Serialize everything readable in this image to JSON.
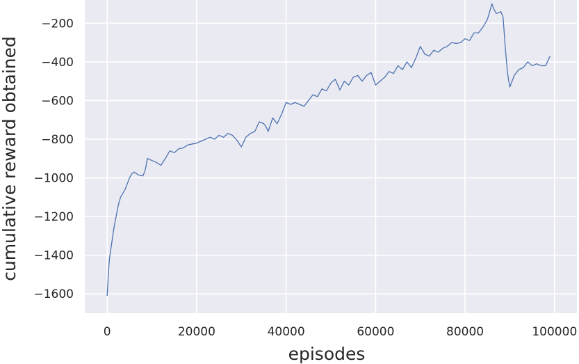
{
  "chart_data": {
    "type": "line",
    "title": "",
    "xlabel": "episodes",
    "ylabel": "cumulative reward obtained",
    "xlim": [
      -5000,
      105000
    ],
    "ylim": [
      -1700,
      -80
    ],
    "grid": true,
    "colors": {
      "background": "#eaeaf2",
      "grid": "#ffffff",
      "line": "#4c72b0"
    },
    "xticks": [
      {
        "value": 0,
        "label": "0"
      },
      {
        "value": 20000,
        "label": "20000"
      },
      {
        "value": 40000,
        "label": "40000"
      },
      {
        "value": 60000,
        "label": "60000"
      },
      {
        "value": 80000,
        "label": "80000"
      },
      {
        "value": 100000,
        "label": "100000"
      }
    ],
    "yticks": [
      {
        "value": -200,
        "label": "−200"
      },
      {
        "value": -400,
        "label": "−400"
      },
      {
        "value": -600,
        "label": "−600"
      },
      {
        "value": -800,
        "label": "−800"
      },
      {
        "value": -1000,
        "label": "−1000"
      },
      {
        "value": -1200,
        "label": "−1200"
      },
      {
        "value": -1400,
        "label": "−1400"
      },
      {
        "value": -1600,
        "label": "−1600"
      }
    ],
    "series": [
      {
        "x": [
          0,
          250,
          500,
          1000,
          1500,
          2000,
          2500,
          3000,
          3500,
          4000,
          5000,
          5500,
          6000,
          7000,
          8000,
          8500,
          9000,
          10000,
          11000,
          12000,
          13000,
          13500,
          14000,
          15000,
          16000,
          17000,
          18000,
          19000,
          20000,
          21000,
          22000,
          23000,
          24000,
          25000,
          26000,
          27000,
          28000,
          29000,
          30000,
          31000,
          32000,
          33000,
          34000,
          35000,
          35500,
          36000,
          37000,
          38000,
          39000,
          40000,
          41000,
          42000,
          43000,
          44000,
          45000,
          46000,
          47000,
          48000,
          49000,
          50000,
          51000,
          52000,
          53000,
          54000,
          55000,
          56000,
          57000,
          58000,
          59000,
          60000,
          61000,
          62000,
          63000,
          64000,
          65000,
          66000,
          67000,
          68000,
          69000,
          70000,
          71000,
          72000,
          73000,
          74000,
          75000,
          76000,
          77000,
          78000,
          79000,
          80000,
          81000,
          82000,
          83000,
          84000,
          85000,
          86000,
          86500,
          87000,
          88000,
          88500,
          89000,
          89500,
          90000,
          91000,
          92000,
          93000,
          94000,
          95000,
          96000,
          97000,
          98000,
          99000
        ],
        "y": [
          -1610,
          -1500,
          -1420,
          -1340,
          -1260,
          -1200,
          -1140,
          -1100,
          -1080,
          -1060,
          -1000,
          -980,
          -970,
          -985,
          -990,
          -960,
          -900,
          -910,
          -920,
          -935,
          -900,
          -880,
          -860,
          -870,
          -850,
          -845,
          -830,
          -825,
          -820,
          -810,
          -800,
          -790,
          -800,
          -780,
          -790,
          -770,
          -780,
          -805,
          -840,
          -790,
          -770,
          -760,
          -710,
          -720,
          -735,
          -760,
          -690,
          -720,
          -670,
          -610,
          -620,
          -610,
          -620,
          -630,
          -600,
          -570,
          -580,
          -540,
          -550,
          -510,
          -490,
          -545,
          -500,
          -520,
          -480,
          -470,
          -500,
          -470,
          -455,
          -520,
          -500,
          -480,
          -450,
          -460,
          -420,
          -440,
          -400,
          -430,
          -380,
          -320,
          -360,
          -370,
          -340,
          -350,
          -330,
          -320,
          -300,
          -305,
          -300,
          -280,
          -290,
          -250,
          -250,
          -220,
          -180,
          -100,
          -130,
          -150,
          -140,
          -170,
          -330,
          -460,
          -530,
          -470,
          -440,
          -430,
          -400,
          -420,
          -410,
          -420,
          -420,
          -370
        ]
      }
    ]
  }
}
